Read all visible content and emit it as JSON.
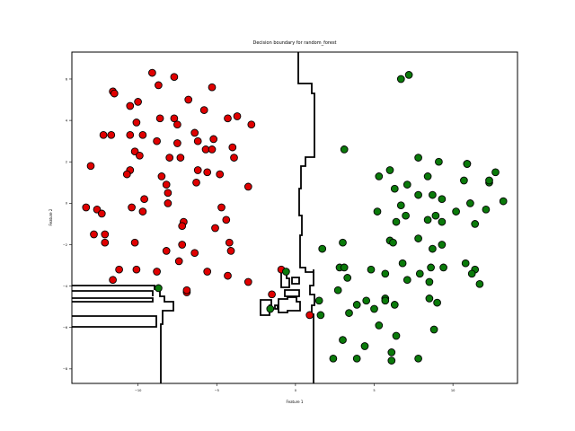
{
  "chart_data": {
    "type": "scatter",
    "title": "Decision boundary for random_forest",
    "xlabel": "Feature 1",
    "ylabel": "Feature 2",
    "xlim": [
      -14.2,
      14.1
    ],
    "ylim": [
      -8.7,
      7.3
    ],
    "xticks": [
      -10,
      -5,
      0,
      5,
      10
    ],
    "yticks": [
      -8,
      -6,
      -4,
      -2,
      0,
      2,
      4,
      6
    ],
    "xtick_labels": [
      "−10",
      "−5",
      "0",
      "5",
      "10"
    ],
    "ytick_labels": [
      "−8",
      "−6",
      "−4",
      "−2",
      "0",
      "2",
      "4",
      "6"
    ],
    "grid": false,
    "legend": "none",
    "series": [
      {
        "color": "#e00000",
        "points": [
          [
            -9.1,
            6.3
          ],
          [
            -7.7,
            6.1
          ],
          [
            -8.7,
            5.7
          ],
          [
            -5.3,
            5.6
          ],
          [
            -11.6,
            5.4
          ],
          [
            -11.5,
            5.3
          ],
          [
            -6.8,
            5.0
          ],
          [
            -10.0,
            4.9
          ],
          [
            -10.5,
            4.7
          ],
          [
            -5.8,
            4.5
          ],
          [
            -3.7,
            4.2
          ],
          [
            -4.3,
            4.1
          ],
          [
            -8.6,
            4.1
          ],
          [
            -7.7,
            4.1
          ],
          [
            -7.5,
            3.8
          ],
          [
            -10.1,
            3.9
          ],
          [
            -2.8,
            3.8
          ],
          [
            -12.2,
            3.3
          ],
          [
            -11.7,
            3.3
          ],
          [
            -10.5,
            3.3
          ],
          [
            -9.7,
            3.3
          ],
          [
            -6.4,
            3.4
          ],
          [
            -6.2,
            3.0
          ],
          [
            -8.8,
            3.0
          ],
          [
            -7.5,
            2.9
          ],
          [
            -5.2,
            3.1
          ],
          [
            -5.7,
            2.6
          ],
          [
            -5.3,
            2.6
          ],
          [
            -4.0,
            2.7
          ],
          [
            -10.2,
            2.5
          ],
          [
            -9.9,
            2.3
          ],
          [
            -8.0,
            2.2
          ],
          [
            -7.3,
            2.2
          ],
          [
            -3.9,
            2.2
          ],
          [
            -13.0,
            1.8
          ],
          [
            -10.5,
            1.6
          ],
          [
            -10.7,
            1.4
          ],
          [
            -6.2,
            1.6
          ],
          [
            -5.6,
            1.5
          ],
          [
            -4.8,
            1.4
          ],
          [
            -8.5,
            1.3
          ],
          [
            -8.2,
            0.9
          ],
          [
            -6.3,
            1.0
          ],
          [
            -3.0,
            0.8
          ],
          [
            -8.1,
            0.5
          ],
          [
            -9.6,
            0.2
          ],
          [
            -8.1,
            0.0
          ],
          [
            -13.3,
            -0.2
          ],
          [
            -12.6,
            -0.3
          ],
          [
            -12.3,
            -0.5
          ],
          [
            -10.4,
            -0.2
          ],
          [
            -9.7,
            -0.4
          ],
          [
            -4.7,
            -0.2
          ],
          [
            -7.1,
            -0.9
          ],
          [
            -7.2,
            -1.1
          ],
          [
            -4.4,
            -0.8
          ],
          [
            -5.1,
            -1.2
          ],
          [
            -12.8,
            -1.5
          ],
          [
            -12.1,
            -1.5
          ],
          [
            -12.1,
            -1.9
          ],
          [
            -10.2,
            -1.9
          ],
          [
            -8.2,
            -2.3
          ],
          [
            -7.2,
            -2.0
          ],
          [
            -4.2,
            -1.9
          ],
          [
            -4.1,
            -2.3
          ],
          [
            -6.4,
            -2.4
          ],
          [
            -7.4,
            -2.8
          ],
          [
            -11.2,
            -3.2
          ],
          [
            -10.1,
            -3.2
          ],
          [
            -8.8,
            -3.3
          ],
          [
            -5.6,
            -3.3
          ],
          [
            -4.3,
            -3.5
          ],
          [
            -3.0,
            -3.8
          ],
          [
            -11.6,
            -3.7
          ],
          [
            -0.9,
            -3.2
          ],
          [
            -1.5,
            -4.4
          ],
          [
            -6.9,
            -4.3
          ],
          [
            -6.9,
            -4.2
          ],
          [
            0.9,
            -5.4
          ]
        ]
      },
      {
        "color": "#0a7a0a",
        "points": [
          [
            7.2,
            6.2
          ],
          [
            6.7,
            6.0
          ],
          [
            3.1,
            2.6
          ],
          [
            7.8,
            2.2
          ],
          [
            9.1,
            2.0
          ],
          [
            10.9,
            1.9
          ],
          [
            10.9,
            1.9
          ],
          [
            6.0,
            1.6
          ],
          [
            12.7,
            1.5
          ],
          [
            8.4,
            1.3
          ],
          [
            5.3,
            1.3
          ],
          [
            10.7,
            1.1
          ],
          [
            12.3,
            1.0
          ],
          [
            12.3,
            1.1
          ],
          [
            7.1,
            0.9
          ],
          [
            6.3,
            0.7
          ],
          [
            7.8,
            0.4
          ],
          [
            8.7,
            0.4
          ],
          [
            9.3,
            0.2
          ],
          [
            13.2,
            0.1
          ],
          [
            11.1,
            0.0
          ],
          [
            6.7,
            -0.1
          ],
          [
            5.2,
            -0.4
          ],
          [
            12.1,
            -0.3
          ],
          [
            10.2,
            -0.4
          ],
          [
            7.0,
            -0.6
          ],
          [
            8.9,
            -0.6
          ],
          [
            6.4,
            -0.9
          ],
          [
            8.4,
            -0.8
          ],
          [
            9.3,
            -0.9
          ],
          [
            11.4,
            -1.0
          ],
          [
            7.8,
            -1.7
          ],
          [
            6.0,
            -1.8
          ],
          [
            6.2,
            -1.9
          ],
          [
            9.3,
            -2.0
          ],
          [
            3.0,
            -1.9
          ],
          [
            1.7,
            -2.2
          ],
          [
            8.7,
            -2.2
          ],
          [
            6.8,
            -2.9
          ],
          [
            10.8,
            -2.9
          ],
          [
            2.8,
            -3.1
          ],
          [
            3.1,
            -3.1
          ],
          [
            4.8,
            -3.2
          ],
          [
            8.6,
            -3.1
          ],
          [
            9.4,
            -3.1
          ],
          [
            11.4,
            -3.2
          ],
          [
            5.7,
            -3.4
          ],
          [
            7.9,
            -3.4
          ],
          [
            11.2,
            -3.4
          ],
          [
            3.3,
            -3.6
          ],
          [
            8.5,
            -3.8
          ],
          [
            7.1,
            -3.7
          ],
          [
            11.7,
            -3.9
          ],
          [
            2.7,
            -4.2
          ],
          [
            -0.6,
            -3.3
          ],
          [
            1.5,
            -4.7
          ],
          [
            4.5,
            -4.7
          ],
          [
            5.7,
            -4.6
          ],
          [
            5.7,
            -4.7
          ],
          [
            8.5,
            -4.6
          ],
          [
            9.0,
            -4.8
          ],
          [
            6.3,
            -4.9
          ],
          [
            3.9,
            -4.9
          ],
          [
            5.0,
            -5.1
          ],
          [
            -1.6,
            -5.1
          ],
          [
            3.4,
            -5.3
          ],
          [
            1.6,
            -5.4
          ],
          [
            5.3,
            -5.9
          ],
          [
            8.8,
            -6.1
          ],
          [
            6.4,
            -6.4
          ],
          [
            3.0,
            -6.6
          ],
          [
            4.4,
            -6.9
          ],
          [
            6.1,
            -7.2
          ],
          [
            2.4,
            -7.5
          ],
          [
            3.9,
            -7.5
          ],
          [
            7.8,
            -7.5
          ],
          [
            6.1,
            -7.6
          ],
          [
            -8.7,
            -4.1
          ]
        ]
      }
    ]
  }
}
